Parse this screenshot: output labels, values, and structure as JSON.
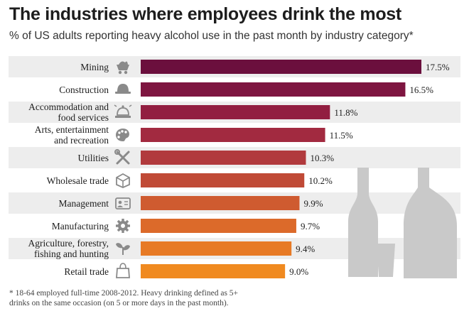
{
  "header": {
    "title": "The industries where employees drink the most",
    "subtitle": "% of US adults reporting heavy alcohol use in the past month by industry category*"
  },
  "chart_data": {
    "type": "bar",
    "orientation": "horizontal",
    "title": "The industries where employees drink the most",
    "subtitle": "% of US adults reporting heavy alcohol use in the past month by industry category*",
    "unit": "%",
    "xlim": [
      0,
      17.5
    ],
    "categories": [
      [
        "Mining"
      ],
      [
        "Construction"
      ],
      [
        "Accommodation and",
        "food services"
      ],
      [
        "Arts, entertainment",
        "and recreation"
      ],
      [
        "Utilities"
      ],
      [
        "Wholesale trade"
      ],
      [
        "Management"
      ],
      [
        "Manufacturing"
      ],
      [
        "Agriculture, forestry,",
        "fishing and hunting"
      ],
      [
        "Retail trade"
      ]
    ],
    "values": [
      17.5,
      16.5,
      11.8,
      11.5,
      10.3,
      10.2,
      9.9,
      9.7,
      9.4,
      9.0
    ],
    "value_labels": [
      "17.5%",
      "16.5%",
      "11.8%",
      "11.5%",
      "10.3%",
      "10.2%",
      "9.9%",
      "9.7%",
      "9.4%",
      "9.0%"
    ],
    "icons": [
      "mining-cart-icon",
      "hard-hat-icon",
      "service-bell-icon",
      "paint-palette-icon",
      "wrench-screwdriver-icon",
      "box-icon",
      "id-badge-icon",
      "gear-icon",
      "sprout-icon",
      "shopping-bag-icon"
    ],
    "bar_colors": [
      "#6b0f3d",
      "#7e1540",
      "#921e41",
      "#a22a40",
      "#b13a3d",
      "#c04a36",
      "#cf5b30",
      "#dc6a2a",
      "#e77a25",
      "#f08a20"
    ]
  },
  "footnote": {
    "line1": "* 18-64 employed full-time 2008-2012. Heavy drinking defined as 5+",
    "line2": "drinks on the same occasion (on 5 or more days in the past month)."
  },
  "colors": {
    "row_band": "#ededed",
    "icon": "#8a8a8a",
    "bottles": "#c9c9c9"
  }
}
